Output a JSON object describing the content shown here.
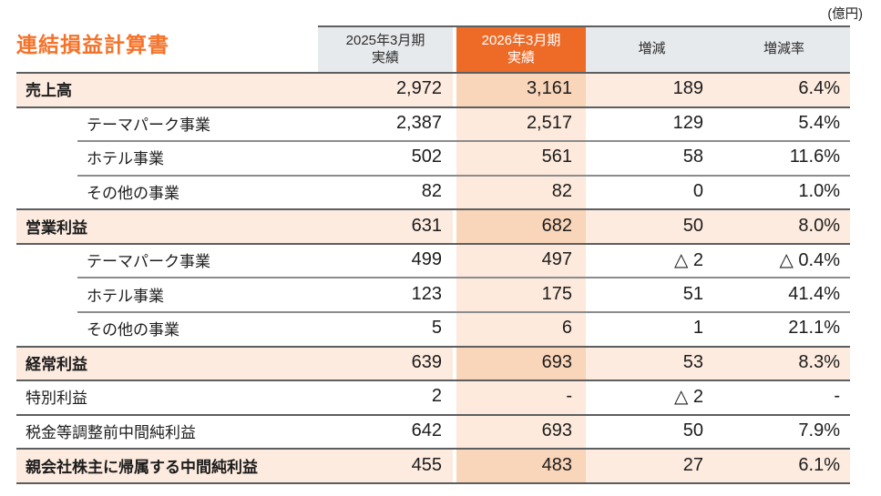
{
  "meta": {
    "unit_note": "(億円)"
  },
  "title": "連結損益計算書",
  "colors": {
    "accent_orange": "#ed6b27",
    "title_orange": "#f4732a",
    "header_gray": "#e7eaed",
    "total_row_peach": "#fdebdf",
    "highlight_col_on_peach": "#f9d5b9",
    "highlight_col_on_white": "#fdeadc",
    "major_line": "#5d5e60",
    "minor_line": "#8a8c8e"
  },
  "table": {
    "column_headers": [
      {
        "id": "fy2025",
        "line1": "2025年3月期",
        "line2": "実績",
        "highlighted": false
      },
      {
        "id": "fy2026",
        "line1": "2026年3月期",
        "line2": "実績",
        "highlighted": true
      },
      {
        "id": "change",
        "label": "増減"
      },
      {
        "id": "change_rate",
        "label": "増減率"
      }
    ],
    "rows": [
      {
        "label": "売上高",
        "fy2025": "2,972",
        "fy2026": "3,161",
        "change": "189",
        "change_rate": "6.4%",
        "style": "total"
      },
      {
        "label": "テーマパーク事業",
        "fy2025": "2,387",
        "fy2026": "2,517",
        "change": "129",
        "change_rate": "5.4%",
        "style": "sub"
      },
      {
        "label": "ホテル事業",
        "fy2025": "502",
        "fy2026": "561",
        "change": "58",
        "change_rate": "11.6%",
        "style": "sub"
      },
      {
        "label": "その他の事業",
        "fy2025": "82",
        "fy2026": "82",
        "change": "0",
        "change_rate": "1.0%",
        "style": "sub"
      },
      {
        "label": "営業利益",
        "fy2025": "631",
        "fy2026": "682",
        "change": "50",
        "change_rate": "8.0%",
        "style": "total"
      },
      {
        "label": "テーマパーク事業",
        "fy2025": "499",
        "fy2026": "497",
        "change": "△ 2",
        "change_rate": "△ 0.4%",
        "style": "sub"
      },
      {
        "label": "ホテル事業",
        "fy2025": "123",
        "fy2026": "175",
        "change": "51",
        "change_rate": "41.4%",
        "style": "sub"
      },
      {
        "label": "その他の事業",
        "fy2025": "5",
        "fy2026": "6",
        "change": "1",
        "change_rate": "21.1%",
        "style": "sub"
      },
      {
        "label": "経常利益",
        "fy2025": "639",
        "fy2026": "693",
        "change": "53",
        "change_rate": "8.3%",
        "style": "total"
      },
      {
        "label": "特別利益",
        "fy2025": "2",
        "fy2026": "-",
        "change": "△ 2",
        "change_rate": "-",
        "style": "plain"
      },
      {
        "label": "税金等調整前中間純利益",
        "fy2025": "642",
        "fy2026": "693",
        "change": "50",
        "change_rate": "7.9%",
        "style": "plain"
      },
      {
        "label": "親会社株主に帰属する中間純利益",
        "fy2025": "455",
        "fy2026": "483",
        "change": "27",
        "change_rate": "6.1%",
        "style": "total"
      }
    ]
  }
}
